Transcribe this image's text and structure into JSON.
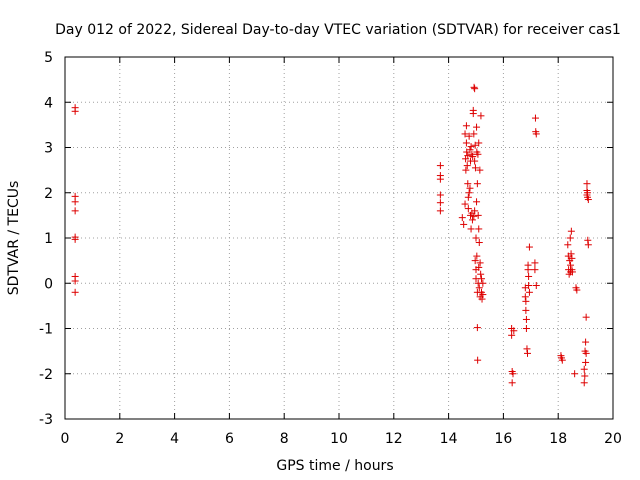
{
  "chart_data": {
    "type": "scatter",
    "title": "Day 012 of 2022, Sidereal Day-to-day VTEC variation (SDTVAR) for receiver cas1",
    "xlabel": "GPS time / hours",
    "ylabel": "SDTVAR / TECUs",
    "xlim": [
      0,
      20
    ],
    "ylim": [
      -3,
      5
    ],
    "xticks": [
      "0",
      "2",
      "4",
      "6",
      "8",
      "10",
      "12",
      "14",
      "16",
      "18",
      "20"
    ],
    "yticks": [
      "-3",
      "-2",
      "-1",
      "0",
      "1",
      "2",
      "3",
      "4",
      "5"
    ],
    "grid": true,
    "marker": "+",
    "color": "#dd0000",
    "series": [
      {
        "name": "cas1",
        "points": [
          [
            0.37,
            3.88
          ],
          [
            0.37,
            3.8
          ],
          [
            0.37,
            1.92
          ],
          [
            0.37,
            1.8
          ],
          [
            0.37,
            1.6
          ],
          [
            0.37,
            1.02
          ],
          [
            0.37,
            0.97
          ],
          [
            0.37,
            0.15
          ],
          [
            0.37,
            0.05
          ],
          [
            0.37,
            -0.2
          ],
          [
            13.7,
            2.6
          ],
          [
            13.7,
            2.38
          ],
          [
            13.7,
            2.3
          ],
          [
            13.7,
            1.95
          ],
          [
            13.7,
            1.78
          ],
          [
            13.7,
            1.6
          ],
          [
            14.5,
            1.45
          ],
          [
            14.55,
            1.3
          ],
          [
            14.6,
            1.75
          ],
          [
            14.6,
            3.3
          ],
          [
            14.62,
            2.75
          ],
          [
            14.63,
            2.5
          ],
          [
            14.65,
            3.48
          ],
          [
            14.65,
            3.1
          ],
          [
            14.66,
            2.9
          ],
          [
            14.68,
            2.6
          ],
          [
            14.7,
            2.82
          ],
          [
            14.7,
            2.2
          ],
          [
            14.72,
            1.65
          ],
          [
            14.72,
            1.9
          ],
          [
            14.75,
            3.25
          ],
          [
            14.75,
            2.0
          ],
          [
            14.78,
            2.95
          ],
          [
            14.78,
            2.1
          ],
          [
            14.8,
            1.5
          ],
          [
            14.8,
            2.7
          ],
          [
            14.82,
            3.02
          ],
          [
            14.82,
            1.2
          ],
          [
            14.85,
            1.55
          ],
          [
            14.85,
            2.85
          ],
          [
            14.87,
            1.4
          ],
          [
            14.88,
            2.8
          ],
          [
            14.9,
            3.82
          ],
          [
            14.9,
            3.75
          ],
          [
            14.92,
            3.3
          ],
          [
            14.92,
            1.48
          ],
          [
            14.93,
            4.33
          ],
          [
            14.95,
            4.3
          ],
          [
            14.95,
            2.7
          ],
          [
            14.95,
            1.6
          ],
          [
            14.97,
            3.05
          ],
          [
            14.97,
            0.5
          ],
          [
            14.98,
            2.55
          ],
          [
            15.0,
            0.3
          ],
          [
            15.0,
            0.1
          ],
          [
            15.0,
            1.0
          ],
          [
            15.02,
            3.45
          ],
          [
            15.02,
            1.8
          ],
          [
            15.03,
            2.9
          ],
          [
            15.03,
            0.6
          ],
          [
            15.05,
            2.2
          ],
          [
            15.05,
            -0.2
          ],
          [
            15.05,
            -0.98
          ],
          [
            15.06,
            -1.7
          ],
          [
            15.07,
            2.85
          ],
          [
            15.08,
            1.5
          ],
          [
            15.08,
            0.0
          ],
          [
            15.1,
            3.1
          ],
          [
            15.1,
            1.2
          ],
          [
            15.1,
            0.35
          ],
          [
            15.12,
            0.9
          ],
          [
            15.12,
            -0.1
          ],
          [
            15.14,
            2.5
          ],
          [
            15.15,
            0.45
          ],
          [
            15.15,
            -0.3
          ],
          [
            15.17,
            0.2
          ],
          [
            15.18,
            3.7
          ],
          [
            15.2,
            -0.2
          ],
          [
            15.2,
            0.1
          ],
          [
            15.22,
            -0.35
          ],
          [
            15.25,
            0.0
          ],
          [
            15.25,
            -0.25
          ],
          [
            16.3,
            -1.0
          ],
          [
            16.3,
            -1.15
          ],
          [
            16.32,
            -1.95
          ],
          [
            16.32,
            -2.2
          ],
          [
            16.35,
            -2.0
          ],
          [
            16.38,
            -1.05
          ],
          [
            16.8,
            -0.1
          ],
          [
            16.8,
            -0.3
          ],
          [
            16.82,
            -0.4
          ],
          [
            16.82,
            -0.6
          ],
          [
            16.84,
            -0.8
          ],
          [
            16.84,
            -1.0
          ],
          [
            16.86,
            -1.45
          ],
          [
            16.88,
            -1.55
          ],
          [
            16.9,
            0.4
          ],
          [
            16.9,
            0.3
          ],
          [
            16.92,
            0.15
          ],
          [
            16.92,
            -0.05
          ],
          [
            16.95,
            0.8
          ],
          [
            16.95,
            -0.2
          ],
          [
            17.15,
            0.45
          ],
          [
            17.15,
            0.3
          ],
          [
            17.17,
            3.65
          ],
          [
            17.18,
            3.35
          ],
          [
            17.2,
            3.3
          ],
          [
            17.2,
            -0.05
          ],
          [
            18.1,
            -1.6
          ],
          [
            18.12,
            -1.65
          ],
          [
            18.15,
            -1.7
          ],
          [
            18.35,
            0.85
          ],
          [
            18.37,
            0.6
          ],
          [
            18.38,
            0.3
          ],
          [
            18.4,
            0.2
          ],
          [
            18.42,
            0.5
          ],
          [
            18.44,
            1.0
          ],
          [
            18.45,
            0.4
          ],
          [
            18.45,
            0.25
          ],
          [
            18.47,
            0.65
          ],
          [
            18.48,
            1.15
          ],
          [
            18.5,
            0.3
          ],
          [
            18.5,
            0.55
          ],
          [
            18.52,
            0.25
          ],
          [
            18.6,
            -2.0
          ],
          [
            18.65,
            -0.1
          ],
          [
            18.68,
            -0.15
          ],
          [
            18.95,
            -1.9
          ],
          [
            18.95,
            -2.2
          ],
          [
            18.97,
            -2.05
          ],
          [
            18.98,
            -1.5
          ],
          [
            19.0,
            -1.75
          ],
          [
            19.0,
            -1.3
          ],
          [
            19.02,
            -0.75
          ],
          [
            19.02,
            -1.55
          ],
          [
            19.05,
            2.2
          ],
          [
            19.05,
            2.05
          ],
          [
            19.05,
            1.95
          ],
          [
            19.07,
            1.9
          ],
          [
            19.07,
            2.0
          ],
          [
            19.08,
            0.95
          ],
          [
            19.1,
            0.85
          ],
          [
            19.1,
            1.85
          ]
        ]
      }
    ]
  }
}
